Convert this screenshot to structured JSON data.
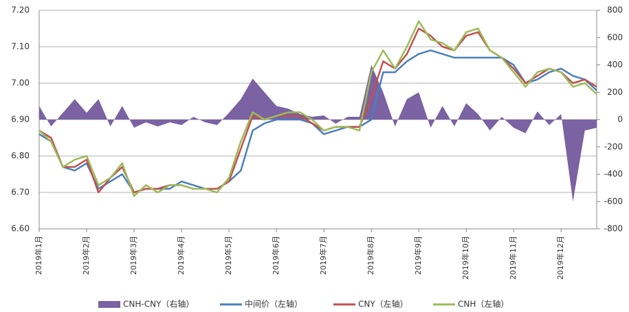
{
  "chart_data": {
    "type": "combo",
    "categories": [
      "2019年1月",
      null,
      null,
      null,
      "2019年2月",
      null,
      null,
      null,
      "2019年3月",
      null,
      null,
      null,
      "2019年4月",
      null,
      null,
      null,
      "2019年5月",
      null,
      null,
      null,
      "2019年6月",
      null,
      null,
      null,
      "2019年7月",
      null,
      null,
      null,
      "2019年8月",
      null,
      null,
      null,
      "2019年9月",
      null,
      null,
      null,
      "2019年10月",
      null,
      null,
      null,
      "2019年11月",
      null,
      null,
      null,
      "2019年12月",
      null,
      null,
      null
    ],
    "series": [
      {
        "name": "CNH-CNY（右轴）",
        "type": "area",
        "axis": "y2",
        "color": "#7b62a3",
        "values": [
          100,
          -50,
          50,
          150,
          50,
          150,
          -50,
          100,
          -60,
          -20,
          -50,
          -20,
          -40,
          20,
          -20,
          -40,
          50,
          150,
          300,
          200,
          100,
          80,
          40,
          20,
          30,
          -30,
          20,
          20,
          400,
          200,
          -50,
          150,
          200,
          -60,
          100,
          -50,
          120,
          40,
          -80,
          20,
          -60,
          -100,
          60,
          -40,
          40,
          -600,
          -80,
          -60
        ]
      },
      {
        "name": "中间价（左轴）",
        "type": "line",
        "color": "#4a7ebb",
        "values": [
          6.86,
          6.84,
          6.77,
          6.76,
          6.78,
          6.71,
          6.73,
          6.75,
          6.7,
          6.71,
          6.71,
          6.71,
          6.73,
          6.72,
          6.71,
          6.71,
          6.73,
          6.76,
          6.87,
          6.89,
          6.9,
          6.9,
          6.9,
          6.89,
          6.86,
          6.87,
          6.88,
          6.88,
          6.9,
          7.03,
          7.03,
          7.06,
          7.08,
          7.09,
          7.08,
          7.07,
          7.07,
          7.07,
          7.07,
          7.07,
          7.05,
          7.0,
          7.01,
          7.03,
          7.04,
          7.02,
          7.01,
          6.98
        ]
      },
      {
        "name": "CNY（左轴）",
        "type": "line",
        "color": "#c0504d",
        "values": [
          6.87,
          6.85,
          6.77,
          6.77,
          6.79,
          6.7,
          6.74,
          6.77,
          6.7,
          6.71,
          6.71,
          6.72,
          6.72,
          6.71,
          6.71,
          6.71,
          6.73,
          6.82,
          6.91,
          6.9,
          6.91,
          6.91,
          6.91,
          6.89,
          6.87,
          6.88,
          6.88,
          6.88,
          6.96,
          7.06,
          7.04,
          7.08,
          7.15,
          7.13,
          7.1,
          7.09,
          7.13,
          7.14,
          7.09,
          7.07,
          7.04,
          7.0,
          7.02,
          7.04,
          7.03,
          7.0,
          7.01,
          6.99
        ]
      },
      {
        "name": "CNH（左轴）",
        "type": "line",
        "color": "#9bbb59",
        "values": [
          6.87,
          6.84,
          6.77,
          6.79,
          6.8,
          6.72,
          6.74,
          6.78,
          6.69,
          6.72,
          6.7,
          6.72,
          6.72,
          6.71,
          6.71,
          6.7,
          6.74,
          6.84,
          6.92,
          6.9,
          6.91,
          6.92,
          6.92,
          6.9,
          6.87,
          6.88,
          6.88,
          6.87,
          7.03,
          7.09,
          7.04,
          7.1,
          7.17,
          7.12,
          7.11,
          7.09,
          7.14,
          7.15,
          7.09,
          7.07,
          7.03,
          6.99,
          7.03,
          7.04,
          7.03,
          6.99,
          7.0,
          6.97
        ]
      }
    ],
    "ylim": [
      6.6,
      7.2
    ],
    "yticks": [
      {
        "value": 6.6,
        "label": "6.60"
      },
      {
        "value": 6.7,
        "label": "6.70"
      },
      {
        "value": 6.8,
        "label": "6.80"
      },
      {
        "value": 6.9,
        "label": "6.90"
      },
      {
        "value": 7.0,
        "label": "7.00"
      },
      {
        "value": 7.1,
        "label": "7.10"
      },
      {
        "value": 7.2,
        "label": "7.20"
      }
    ],
    "y2lim": [
      -800,
      800
    ],
    "y2ticks": [
      -800,
      -600,
      -400,
      -200,
      0,
      200,
      400,
      600,
      800
    ],
    "grid": true,
    "legend": "bottom"
  }
}
